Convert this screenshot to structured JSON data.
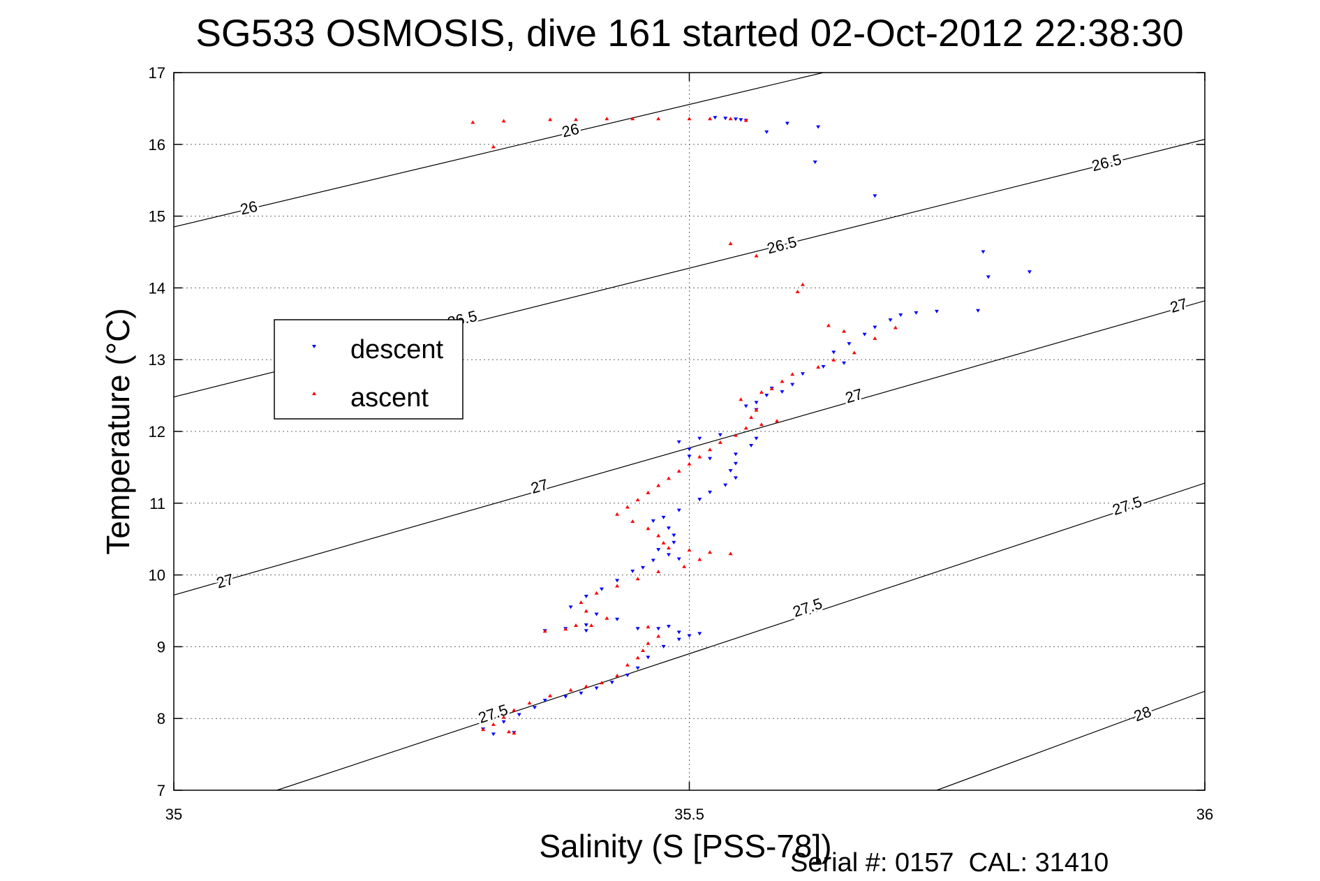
{
  "footer": {
    "serial_label": "Serial #: 0157  CAL: 31410"
  },
  "chart_data": {
    "type": "scatter",
    "title": "SG533 OSMOSIS, dive 161 started 02-Oct-2012 22:38:30",
    "xlabel": "Salinity (S [PSS-78])",
    "ylabel": "Temperature (°C)",
    "xlim": [
      35,
      36
    ],
    "ylim": [
      7,
      17
    ],
    "xticks": [
      "35",
      "35.5",
      "36"
    ],
    "yticks": [
      "7",
      "8",
      "9",
      "10",
      "11",
      "12",
      "13",
      "14",
      "15",
      "16",
      "17"
    ],
    "grid": true,
    "legend": {
      "placement": "left",
      "entries": [
        "descent",
        "ascent"
      ]
    },
    "contour_levels": [
      "26",
      "26.5",
      "27",
      "27.5",
      "28"
    ],
    "contours": [
      {
        "level": "26",
        "points": [
          [
            35,
            14.85
          ],
          [
            35.63,
            17
          ]
        ],
        "labels": [
          [
            35.073,
            15.1
          ],
          [
            35.385,
            16.18
          ]
        ]
      },
      {
        "level": "26.5",
        "points": [
          [
            35,
            12.48
          ],
          [
            36,
            16.07
          ]
        ],
        "labels": [
          [
            35.28,
            13.55
          ],
          [
            35.59,
            14.58
          ],
          [
            35.905,
            15.73
          ]
        ]
      },
      {
        "level": "27",
        "points": [
          [
            35,
            9.72
          ],
          [
            36,
            13.82
          ]
        ],
        "labels": [
          [
            35.05,
            9.9
          ],
          [
            35.355,
            11.22
          ],
          [
            35.66,
            12.48
          ],
          [
            35.975,
            13.74
          ]
        ]
      },
      {
        "level": "27.5",
        "points": [
          [
            35.1,
            7
          ],
          [
            36,
            11.28
          ]
        ],
        "labels": [
          [
            35.31,
            8.05
          ],
          [
            35.615,
            9.53
          ],
          [
            35.925,
            10.95
          ]
        ]
      },
      {
        "level": "28",
        "points": [
          [
            35.74,
            7
          ],
          [
            36,
            8.38
          ]
        ],
        "labels": [
          [
            35.94,
            8.05
          ]
        ]
      }
    ],
    "series": [
      {
        "name": "descent",
        "color": "#0000ff",
        "marker": "triangle-down",
        "points": [
          [
            35.525,
            16.37
          ],
          [
            35.535,
            16.36
          ],
          [
            35.545,
            16.35
          ],
          [
            35.55,
            16.34
          ],
          [
            35.555,
            16.33
          ],
          [
            35.575,
            16.17
          ],
          [
            35.595,
            16.29
          ],
          [
            35.625,
            16.24
          ],
          [
            35.622,
            15.75
          ],
          [
            35.68,
            15.28
          ],
          [
            35.785,
            14.5
          ],
          [
            35.79,
            14.15
          ],
          [
            35.83,
            14.22
          ],
          [
            35.78,
            13.68
          ],
          [
            35.72,
            13.65
          ],
          [
            35.705,
            13.62
          ],
          [
            35.74,
            13.67
          ],
          [
            35.695,
            13.55
          ],
          [
            35.68,
            13.45
          ],
          [
            35.67,
            13.35
          ],
          [
            35.655,
            13.22
          ],
          [
            35.64,
            13.1
          ],
          [
            35.65,
            12.95
          ],
          [
            35.63,
            12.9
          ],
          [
            35.61,
            12.8
          ],
          [
            35.6,
            12.65
          ],
          [
            35.59,
            12.55
          ],
          [
            35.575,
            12.5
          ],
          [
            35.565,
            12.4
          ],
          [
            35.58,
            12.6
          ],
          [
            35.555,
            12.35
          ],
          [
            35.565,
            12.3
          ],
          [
            35.53,
            11.95
          ],
          [
            35.51,
            11.9
          ],
          [
            35.49,
            11.85
          ],
          [
            35.5,
            11.75
          ],
          [
            35.5,
            11.65
          ],
          [
            35.52,
            11.62
          ],
          [
            35.545,
            11.68
          ],
          [
            35.56,
            11.8
          ],
          [
            35.565,
            11.9
          ],
          [
            35.545,
            11.55
          ],
          [
            35.54,
            11.45
          ],
          [
            35.545,
            11.35
          ],
          [
            35.535,
            11.25
          ],
          [
            35.52,
            11.15
          ],
          [
            35.51,
            11.05
          ],
          [
            35.49,
            10.9
          ],
          [
            35.475,
            10.8
          ],
          [
            35.465,
            10.75
          ],
          [
            35.48,
            10.65
          ],
          [
            35.485,
            10.55
          ],
          [
            35.485,
            10.45
          ],
          [
            35.47,
            10.35
          ],
          [
            35.48,
            10.28
          ],
          [
            35.49,
            10.22
          ],
          [
            35.465,
            10.2
          ],
          [
            35.455,
            10.1
          ],
          [
            35.445,
            10.05
          ],
          [
            35.43,
            9.92
          ],
          [
            35.415,
            9.8
          ],
          [
            35.4,
            9.7
          ],
          [
            35.385,
            9.55
          ],
          [
            35.41,
            9.45
          ],
          [
            35.43,
            9.38
          ],
          [
            35.4,
            9.3
          ],
          [
            35.38,
            9.25
          ],
          [
            35.36,
            9.22
          ],
          [
            35.4,
            9.22
          ],
          [
            35.45,
            9.25
          ],
          [
            35.47,
            9.25
          ],
          [
            35.48,
            9.28
          ],
          [
            35.49,
            9.2
          ],
          [
            35.5,
            9.15
          ],
          [
            35.51,
            9.18
          ],
          [
            35.49,
            9.1
          ],
          [
            35.475,
            9.0
          ],
          [
            35.46,
            8.85
          ],
          [
            35.45,
            8.7
          ],
          [
            35.44,
            8.6
          ],
          [
            35.425,
            8.5
          ],
          [
            35.41,
            8.42
          ],
          [
            35.395,
            8.35
          ],
          [
            35.38,
            8.3
          ],
          [
            35.36,
            8.25
          ],
          [
            35.35,
            8.15
          ],
          [
            35.335,
            8.05
          ],
          [
            35.32,
            7.95
          ],
          [
            35.3,
            7.85
          ],
          [
            35.33,
            7.8
          ],
          [
            35.31,
            7.78
          ]
        ]
      },
      {
        "name": "ascent",
        "color": "#ff0000",
        "marker": "triangle-up",
        "points": [
          [
            35.29,
            16.31
          ],
          [
            35.32,
            16.33
          ],
          [
            35.365,
            16.35
          ],
          [
            35.39,
            16.35
          ],
          [
            35.42,
            16.36
          ],
          [
            35.445,
            16.36
          ],
          [
            35.47,
            16.36
          ],
          [
            35.5,
            16.36
          ],
          [
            35.52,
            16.36
          ],
          [
            35.54,
            16.36
          ],
          [
            35.31,
            15.97
          ],
          [
            35.555,
            16.34
          ],
          [
            35.54,
            14.62
          ],
          [
            35.565,
            14.45
          ],
          [
            35.61,
            14.05
          ],
          [
            35.605,
            13.95
          ],
          [
            35.635,
            13.48
          ],
          [
            35.65,
            13.4
          ],
          [
            35.7,
            13.45
          ],
          [
            35.68,
            13.3
          ],
          [
            35.66,
            13.1
          ],
          [
            35.64,
            13.0
          ],
          [
            35.625,
            12.9
          ],
          [
            35.6,
            12.8
          ],
          [
            35.59,
            12.7
          ],
          [
            35.58,
            12.6
          ],
          [
            35.57,
            12.55
          ],
          [
            35.55,
            12.45
          ],
          [
            35.565,
            12.3
          ],
          [
            35.56,
            12.2
          ],
          [
            35.585,
            12.15
          ],
          [
            35.57,
            12.1
          ],
          [
            35.555,
            12.05
          ],
          [
            35.545,
            11.95
          ],
          [
            35.53,
            11.85
          ],
          [
            35.52,
            11.75
          ],
          [
            35.51,
            11.65
          ],
          [
            35.5,
            11.55
          ],
          [
            35.49,
            11.45
          ],
          [
            35.48,
            11.35
          ],
          [
            35.47,
            11.25
          ],
          [
            35.46,
            11.15
          ],
          [
            35.45,
            11.05
          ],
          [
            35.44,
            10.95
          ],
          [
            35.43,
            10.85
          ],
          [
            35.445,
            10.75
          ],
          [
            35.46,
            10.65
          ],
          [
            35.47,
            10.55
          ],
          [
            35.475,
            10.45
          ],
          [
            35.48,
            10.38
          ],
          [
            35.5,
            10.35
          ],
          [
            35.52,
            10.32
          ],
          [
            35.54,
            10.3
          ],
          [
            35.51,
            10.22
          ],
          [
            35.495,
            10.12
          ],
          [
            35.47,
            10.05
          ],
          [
            35.45,
            9.95
          ],
          [
            35.43,
            9.85
          ],
          [
            35.41,
            9.75
          ],
          [
            35.395,
            9.62
          ],
          [
            35.4,
            9.5
          ],
          [
            35.42,
            9.4
          ],
          [
            35.405,
            9.3
          ],
          [
            35.38,
            9.25
          ],
          [
            35.36,
            9.22
          ],
          [
            35.39,
            9.3
          ],
          [
            35.46,
            9.28
          ],
          [
            35.47,
            9.15
          ],
          [
            35.46,
            9.05
          ],
          [
            35.455,
            8.95
          ],
          [
            35.45,
            8.85
          ],
          [
            35.44,
            8.75
          ],
          [
            35.43,
            8.6
          ],
          [
            35.415,
            8.5
          ],
          [
            35.4,
            8.45
          ],
          [
            35.385,
            8.4
          ],
          [
            35.365,
            8.32
          ],
          [
            35.345,
            8.22
          ],
          [
            35.33,
            8.12
          ],
          [
            35.32,
            8.02
          ],
          [
            35.31,
            7.92
          ],
          [
            35.3,
            7.85
          ],
          [
            35.33,
            7.8
          ],
          [
            35.325,
            7.82
          ]
        ]
      }
    ]
  }
}
